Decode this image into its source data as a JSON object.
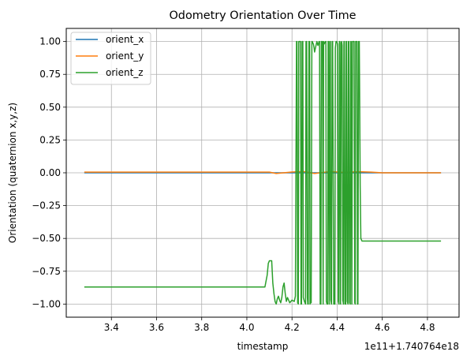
{
  "chart_data": {
    "type": "line",
    "title": "Odometry Orientation Over Time",
    "xlabel": "timestamp",
    "ylabel": "Orientation (quaternion x,y,z)",
    "x_offset_label": "1e11+1.740764e18",
    "xlim": [
      3.2,
      4.94
    ],
    "ylim": [
      -1.1,
      1.1
    ],
    "x_ticks": [
      3.4,
      3.6,
      3.8,
      4.0,
      4.2,
      4.4,
      4.6,
      4.8
    ],
    "x_tick_labels": [
      "3.4",
      "3.6",
      "3.8",
      "4.0",
      "4.2",
      "4.4",
      "4.6",
      "4.8"
    ],
    "y_ticks": [
      -1.0,
      -0.75,
      -0.5,
      -0.25,
      0.0,
      0.25,
      0.5,
      0.75,
      1.0
    ],
    "y_tick_labels": [
      "−1.00",
      "−0.75",
      "−0.50",
      "−0.25",
      "0.00",
      "0.25",
      "0.50",
      "0.75",
      "1.00"
    ],
    "grid": true,
    "legend_position": "top-left",
    "series": [
      {
        "name": "orient_x",
        "color": "#1f77b4",
        "x": [
          3.28,
          4.0,
          4.1,
          4.2,
          4.3,
          4.4,
          4.5,
          4.6,
          4.86
        ],
        "y": [
          0.0,
          0.0,
          0.0,
          0.0,
          0.0,
          0.0,
          0.0,
          0.0,
          0.0
        ]
      },
      {
        "name": "orient_y",
        "color": "#ff7f0e",
        "x": [
          3.28,
          4.05,
          4.1,
          4.13,
          4.2,
          4.25,
          4.3,
          4.37,
          4.42,
          4.5,
          4.55,
          4.6,
          4.86
        ],
        "y": [
          0.005,
          0.005,
          0.005,
          -0.005,
          0.006,
          0.01,
          -0.005,
          0.01,
          0.004,
          0.008,
          0.005,
          0.0,
          0.0
        ]
      },
      {
        "name": "orient_z",
        "color": "#2ca02c",
        "x": [
          3.28,
          4.08,
          4.09,
          4.095,
          4.1,
          4.11,
          4.115,
          4.12,
          4.125,
          4.13,
          4.135,
          4.14,
          4.145,
          4.15,
          4.155,
          4.16,
          4.165,
          4.17,
          4.175,
          4.18,
          4.185,
          4.19,
          4.2,
          4.21,
          4.215,
          4.22,
          4.222,
          4.225,
          4.228,
          4.23,
          4.232,
          4.235,
          4.238,
          4.24,
          4.242,
          4.245,
          4.248,
          4.25,
          4.255,
          4.26,
          4.262,
          4.265,
          4.268,
          4.27,
          4.272,
          4.275,
          4.278,
          4.28,
          4.282,
          4.285,
          4.288,
          4.29,
          4.292,
          4.295,
          4.298,
          4.3,
          4.305,
          4.31,
          4.315,
          4.32,
          4.322,
          4.325,
          4.328,
          4.33,
          4.335,
          4.338,
          4.34,
          4.342,
          4.345,
          4.348,
          4.35,
          4.352,
          4.355,
          4.358,
          4.36,
          4.362,
          4.365,
          4.368,
          4.37,
          4.372,
          4.375,
          4.378,
          4.38,
          4.385,
          4.39,
          4.392,
          4.395,
          4.398,
          4.4,
          4.402,
          4.405,
          4.408,
          4.41,
          4.412,
          4.415,
          4.418,
          4.42,
          4.422,
          4.425,
          4.428,
          4.43,
          4.432,
          4.435,
          4.438,
          4.44,
          4.442,
          4.445,
          4.448,
          4.45,
          4.452,
          4.455,
          4.458,
          4.46,
          4.462,
          4.465,
          4.468,
          4.47,
          4.475,
          4.478,
          4.48,
          4.482,
          4.485,
          4.488,
          4.49,
          4.492,
          4.495,
          4.498,
          4.5,
          4.502,
          4.505,
          4.51,
          4.512,
          4.515,
          4.52,
          4.53,
          4.54,
          4.55,
          4.555,
          4.56,
          4.58,
          4.86
        ],
        "y": [
          -0.87,
          -0.87,
          -0.78,
          -0.69,
          -0.67,
          -0.67,
          -0.84,
          -0.92,
          -0.98,
          -1.0,
          -0.96,
          -0.94,
          -0.97,
          -0.99,
          -0.95,
          -0.87,
          -0.84,
          -0.92,
          -0.98,
          -0.95,
          -0.97,
          -0.99,
          -0.97,
          -0.98,
          -0.94,
          1.0,
          1.0,
          -0.99,
          -1.0,
          1.0,
          1.0,
          1.0,
          1.0,
          -1.0,
          -1.0,
          1.0,
          1.0,
          -0.95,
          -0.98,
          -1.0,
          1.0,
          1.0,
          -0.95,
          -1.0,
          -1.0,
          1.0,
          1.0,
          -1.0,
          -0.98,
          -0.99,
          1.0,
          1.0,
          0.99,
          0.98,
          0.95,
          0.92,
          0.96,
          1.0,
          0.97,
          1.0,
          1.0,
          -1.0,
          -1.0,
          1.0,
          1.0,
          -1.0,
          1.0,
          0.98,
          0.99,
          1.0,
          1.0,
          -0.98,
          -1.0,
          -1.0,
          1.0,
          1.0,
          -1.0,
          1.0,
          1.0,
          -0.97,
          -1.0,
          1.0,
          1.0,
          -1.0,
          -1.0,
          0.95,
          1.0,
          1.0,
          0.99,
          0.98,
          -0.98,
          -1.0,
          1.0,
          1.0,
          -1.0,
          0.99,
          1.0,
          0.97,
          -0.97,
          -1.0,
          1.0,
          1.0,
          -1.0,
          -1.0,
          1.0,
          1.0,
          -0.98,
          -1.0,
          1.0,
          1.0,
          -0.99,
          -1.0,
          1.0,
          1.0,
          -1.0,
          1.0,
          1.0,
          1.0,
          -0.99,
          -1.0,
          1.0,
          1.0,
          1.0,
          -1.0,
          -1.0,
          1.0,
          1.0,
          0.5,
          -0.1,
          -0.5,
          -0.52,
          -0.52,
          -0.52,
          -0.52,
          -0.52,
          -0.52,
          -0.52,
          -0.52,
          -0.52,
          -0.52,
          -0.52
        ]
      }
    ]
  }
}
